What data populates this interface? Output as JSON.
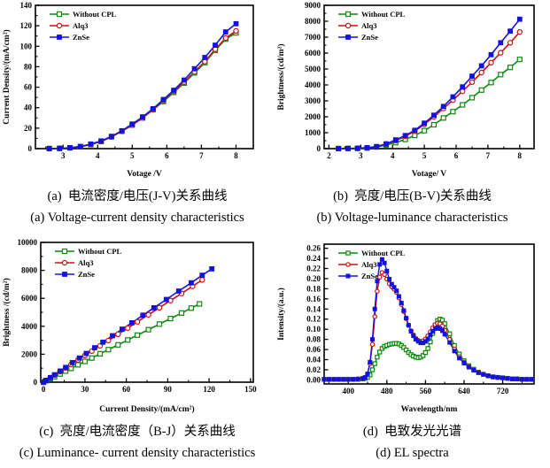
{
  "page": {
    "background": "#ffffff"
  },
  "colors": {
    "without_cpl": "#0b8a0b",
    "alq3": "#cc1111",
    "znse": "#1212e0",
    "axis": "#000000"
  },
  "legend_labels": [
    "Without CPL",
    "Alq3",
    "ZnSe"
  ],
  "chart_data": [
    {
      "panel": "a",
      "type": "line",
      "caption_cn": "(a)  电流密度/电压(J-V)关系曲线",
      "caption_en": "(a) Voltage-current density characteristics",
      "xlabel": "Votage /V",
      "ylabel": "Current Density/(mA/cm²)",
      "xlim": [
        2.2,
        8.5
      ],
      "ylim": [
        0,
        140
      ],
      "xticks": [
        "3",
        "4",
        "5",
        "6",
        "7",
        "8"
      ],
      "yticks": [
        "0",
        "20",
        "40",
        "60",
        "80",
        "100",
        "120",
        "140"
      ],
      "xminor": true,
      "yminor": true,
      "legend_position": "top-left",
      "series": [
        {
          "name": "Without CPL",
          "color": "#0b8a0b",
          "marker": "square-open",
          "x": [
            2.6,
            2.9,
            3.2,
            3.5,
            3.8,
            4.1,
            4.4,
            4.7,
            5.0,
            5.3,
            5.6,
            5.9,
            6.2,
            6.5,
            6.8,
            7.1,
            7.4,
            7.7,
            8.0
          ],
          "y": [
            0.1,
            0.3,
            0.8,
            2,
            4,
            7,
            11.5,
            17,
            23,
            30,
            38,
            46,
            55,
            64,
            74,
            84,
            96,
            107,
            113
          ]
        },
        {
          "name": "Alq3",
          "color": "#cc1111",
          "marker": "circle-open",
          "x": [
            2.6,
            2.9,
            3.2,
            3.5,
            3.8,
            4.1,
            4.4,
            4.7,
            5.0,
            5.3,
            5.6,
            5.9,
            6.2,
            6.5,
            6.8,
            7.1,
            7.4,
            7.7,
            8.0
          ],
          "y": [
            0.1,
            0.3,
            0.8,
            2,
            4,
            7,
            11.5,
            17,
            23,
            30,
            38,
            47,
            56,
            65,
            75,
            85,
            97,
            108,
            115
          ]
        },
        {
          "name": "ZnSe",
          "color": "#1212e0",
          "marker": "square-filled",
          "x": [
            2.6,
            2.9,
            3.2,
            3.5,
            3.8,
            4.1,
            4.4,
            4.7,
            5.0,
            5.3,
            5.6,
            5.9,
            6.2,
            6.5,
            6.8,
            7.1,
            7.4,
            7.7,
            8.0
          ],
          "y": [
            0.1,
            0.3,
            0.9,
            2,
            4.5,
            7.5,
            12,
            17.5,
            24,
            31,
            39,
            48,
            57,
            67,
            78,
            89,
            101,
            114,
            122
          ]
        }
      ]
    },
    {
      "panel": "b",
      "type": "line",
      "caption_cn": "(b)  亮度/电压(B-V)关系曲线",
      "caption_en": "(b) Voltage-luminance characteristics",
      "xlabel": "Votage/ V",
      "ylabel": "Brightness/(cd/m²)",
      "xlim": [
        1.85,
        8.45
      ],
      "ylim": [
        0,
        9000
      ],
      "xticks": [
        "2",
        "3",
        "4",
        "5",
        "6",
        "7",
        "8"
      ],
      "yticks": [
        "0",
        "1000",
        "2000",
        "3000",
        "4000",
        "5000",
        "6000",
        "7000",
        "8000",
        "9000"
      ],
      "xminor": true,
      "yminor": true,
      "legend_position": "top-left",
      "series": [
        {
          "name": "Without CPL",
          "color": "#0b8a0b",
          "marker": "square-open",
          "x": [
            2.3,
            2.6,
            2.9,
            3.2,
            3.5,
            3.8,
            4.1,
            4.4,
            4.7,
            5.0,
            5.3,
            5.6,
            5.9,
            6.2,
            6.5,
            6.8,
            7.1,
            7.4,
            7.7,
            8.0
          ],
          "y": [
            5,
            10,
            15,
            40,
            100,
            230,
            380,
            580,
            830,
            1130,
            1500,
            1930,
            2320,
            2750,
            3200,
            3680,
            4150,
            4650,
            5100,
            5600
          ]
        },
        {
          "name": "Alq3",
          "color": "#cc1111",
          "marker": "circle-open",
          "x": [
            2.3,
            2.6,
            2.9,
            3.2,
            3.5,
            3.8,
            4.1,
            4.4,
            4.7,
            5.0,
            5.3,
            5.6,
            5.9,
            6.2,
            6.5,
            6.8,
            7.1,
            7.4,
            7.7,
            8.0
          ],
          "y": [
            5,
            10,
            20,
            50,
            120,
            280,
            500,
            780,
            1100,
            1520,
            2000,
            2520,
            3050,
            3600,
            4180,
            4780,
            5400,
            6020,
            6650,
            7320
          ]
        },
        {
          "name": "ZnSe",
          "color": "#1212e0",
          "marker": "square-filled",
          "x": [
            2.3,
            2.6,
            2.9,
            3.2,
            3.5,
            3.8,
            4.1,
            4.4,
            4.7,
            5.0,
            5.3,
            5.6,
            5.9,
            6.2,
            6.5,
            6.8,
            7.1,
            7.4,
            7.7,
            8.0
          ],
          "y": [
            5,
            10,
            20,
            60,
            130,
            300,
            550,
            820,
            1150,
            1600,
            2100,
            2650,
            3250,
            3880,
            4550,
            5200,
            5900,
            6650,
            7380,
            8130
          ]
        }
      ]
    },
    {
      "panel": "c",
      "type": "line",
      "caption_cn": "(c)  亮度/电流密度（B-J）关系曲线",
      "caption_en": "(c) Luminance- current density characteristics",
      "xlabel": "Current Density/(mA/cm²)",
      "ylabel": "Brightness /(cd/m²)",
      "xlim": [
        -2,
        152
      ],
      "ylim": [
        0,
        10000
      ],
      "xticks": [
        "0",
        "30",
        "60",
        "90",
        "120",
        "150"
      ],
      "yticks": [
        "0",
        "2000",
        "4000",
        "6000",
        "8000",
        "10000"
      ],
      "xminor": true,
      "yminor": true,
      "legend_position": "top-left",
      "series": [
        {
          "name": "Without CPL",
          "color": "#0b8a0b",
          "marker": "square-open",
          "x": [
            0,
            2,
            5,
            8,
            12,
            16,
            20,
            25,
            30,
            35,
            41,
            47,
            54,
            61,
            68,
            76,
            84,
            92,
            100,
            107,
            113
          ],
          "y": [
            0,
            100,
            250,
            400,
            590,
            790,
            990,
            1240,
            1490,
            1730,
            2030,
            2330,
            2670,
            3020,
            3370,
            3760,
            4160,
            4550,
            4950,
            5300,
            5600
          ]
        },
        {
          "name": "Alq3",
          "color": "#cc1111",
          "marker": "circle-open",
          "x": [
            0,
            2,
            5,
            8,
            12,
            16,
            20,
            25,
            30,
            35,
            41,
            47,
            54,
            61,
            68,
            76,
            84,
            92,
            100,
            108,
            115
          ],
          "y": [
            0,
            130,
            320,
            510,
            760,
            1020,
            1270,
            1590,
            1910,
            2220,
            2600,
            2980,
            3430,
            3870,
            4320,
            4830,
            5330,
            5840,
            6350,
            6860,
            7320
          ]
        },
        {
          "name": "ZnSe",
          "color": "#1212e0",
          "marker": "square-filled",
          "x": [
            0,
            2,
            5,
            8,
            12,
            16,
            21,
            26,
            31,
            37,
            43,
            50,
            57,
            64,
            72,
            80,
            89,
            98,
            107,
            115,
            122
          ],
          "y": [
            0,
            130,
            330,
            530,
            800,
            1060,
            1400,
            1730,
            2060,
            2460,
            2860,
            3320,
            3790,
            4250,
            4790,
            5320,
            5920,
            6520,
            7110,
            7650,
            8110
          ]
        }
      ]
    },
    {
      "panel": "d",
      "type": "line",
      "caption_cn": "(d)  电致发光光谱",
      "caption_en": "(d) EL spectra",
      "xlabel": "Wavelength/nm",
      "ylabel": "Intensity/(a.u.)",
      "xlim": [
        350,
        785
      ],
      "ylim": [
        -0.008,
        0.268
      ],
      "xticks": [
        "400",
        "480",
        "560",
        "640",
        "720"
      ],
      "yticks": [
        "0.00",
        "0.02",
        "0.04",
        "0.06",
        "0.08",
        "0.10",
        "0.12",
        "0.14",
        "0.16",
        "0.18",
        "0.20",
        "0.22",
        "0.24",
        "0.26"
      ],
      "xminor": true,
      "yminor": false,
      "legend_position": "top-left",
      "x": [
        350,
        360,
        370,
        380,
        390,
        400,
        410,
        420,
        430,
        435,
        440,
        445,
        450,
        455,
        460,
        465,
        470,
        475,
        480,
        485,
        490,
        495,
        500,
        505,
        510,
        515,
        520,
        525,
        530,
        535,
        540,
        545,
        550,
        555,
        560,
        565,
        570,
        575,
        580,
        585,
        590,
        595,
        600,
        610,
        620,
        630,
        640,
        650,
        660,
        670,
        680,
        690,
        700,
        710,
        720,
        730,
        740,
        750,
        760,
        770,
        780
      ],
      "series": [
        {
          "name": "Without CPL",
          "color": "#0b8a0b",
          "marker": "square-open",
          "y": [
            0.001,
            0.001,
            0.001,
            0.001,
            0.001,
            0.001,
            0.001,
            0.001,
            0.002,
            0.003,
            0.005,
            0.01,
            0.02,
            0.032,
            0.045,
            0.055,
            0.062,
            0.066,
            0.068,
            0.07,
            0.071,
            0.072,
            0.072,
            0.071,
            0.068,
            0.064,
            0.059,
            0.054,
            0.05,
            0.047,
            0.045,
            0.044,
            0.045,
            0.048,
            0.054,
            0.062,
            0.075,
            0.092,
            0.108,
            0.117,
            0.12,
            0.118,
            0.111,
            0.091,
            0.068,
            0.051,
            0.038,
            0.028,
            0.021,
            0.015,
            0.011,
            0.008,
            0.006,
            0.005,
            0.004,
            0.003,
            0.002,
            0.002,
            0.001,
            0.001,
            0.001
          ]
        },
        {
          "name": "Alq3",
          "color": "#cc1111",
          "marker": "circle-open",
          "y": [
            0.001,
            0.001,
            0.001,
            0.001,
            0.001,
            0.001,
            0.001,
            0.002,
            0.003,
            0.005,
            0.012,
            0.032,
            0.07,
            0.125,
            0.175,
            0.203,
            0.212,
            0.208,
            0.199,
            0.19,
            0.184,
            0.179,
            0.173,
            0.162,
            0.149,
            0.135,
            0.121,
            0.108,
            0.097,
            0.089,
            0.082,
            0.078,
            0.076,
            0.077,
            0.081,
            0.087,
            0.095,
            0.103,
            0.109,
            0.112,
            0.111,
            0.106,
            0.098,
            0.08,
            0.061,
            0.046,
            0.035,
            0.026,
            0.02,
            0.015,
            0.011,
            0.008,
            0.006,
            0.005,
            0.004,
            0.003,
            0.002,
            0.002,
            0.001,
            0.001,
            0.001
          ]
        },
        {
          "name": "ZnSe",
          "color": "#1212e0",
          "marker": "square-filled",
          "y": [
            0.001,
            0.001,
            0.001,
            0.001,
            0.001,
            0.001,
            0.001,
            0.002,
            0.003,
            0.005,
            0.012,
            0.035,
            0.08,
            0.14,
            0.195,
            0.228,
            0.238,
            0.231,
            0.215,
            0.199,
            0.189,
            0.183,
            0.176,
            0.165,
            0.152,
            0.137,
            0.122,
            0.108,
            0.096,
            0.087,
            0.08,
            0.076,
            0.073,
            0.073,
            0.076,
            0.081,
            0.089,
            0.096,
            0.101,
            0.103,
            0.101,
            0.097,
            0.09,
            0.074,
            0.057,
            0.043,
            0.033,
            0.025,
            0.019,
            0.014,
            0.011,
            0.008,
            0.006,
            0.005,
            0.004,
            0.003,
            0.002,
            0.002,
            0.001,
            0.001,
            0.001
          ]
        }
      ]
    }
  ]
}
